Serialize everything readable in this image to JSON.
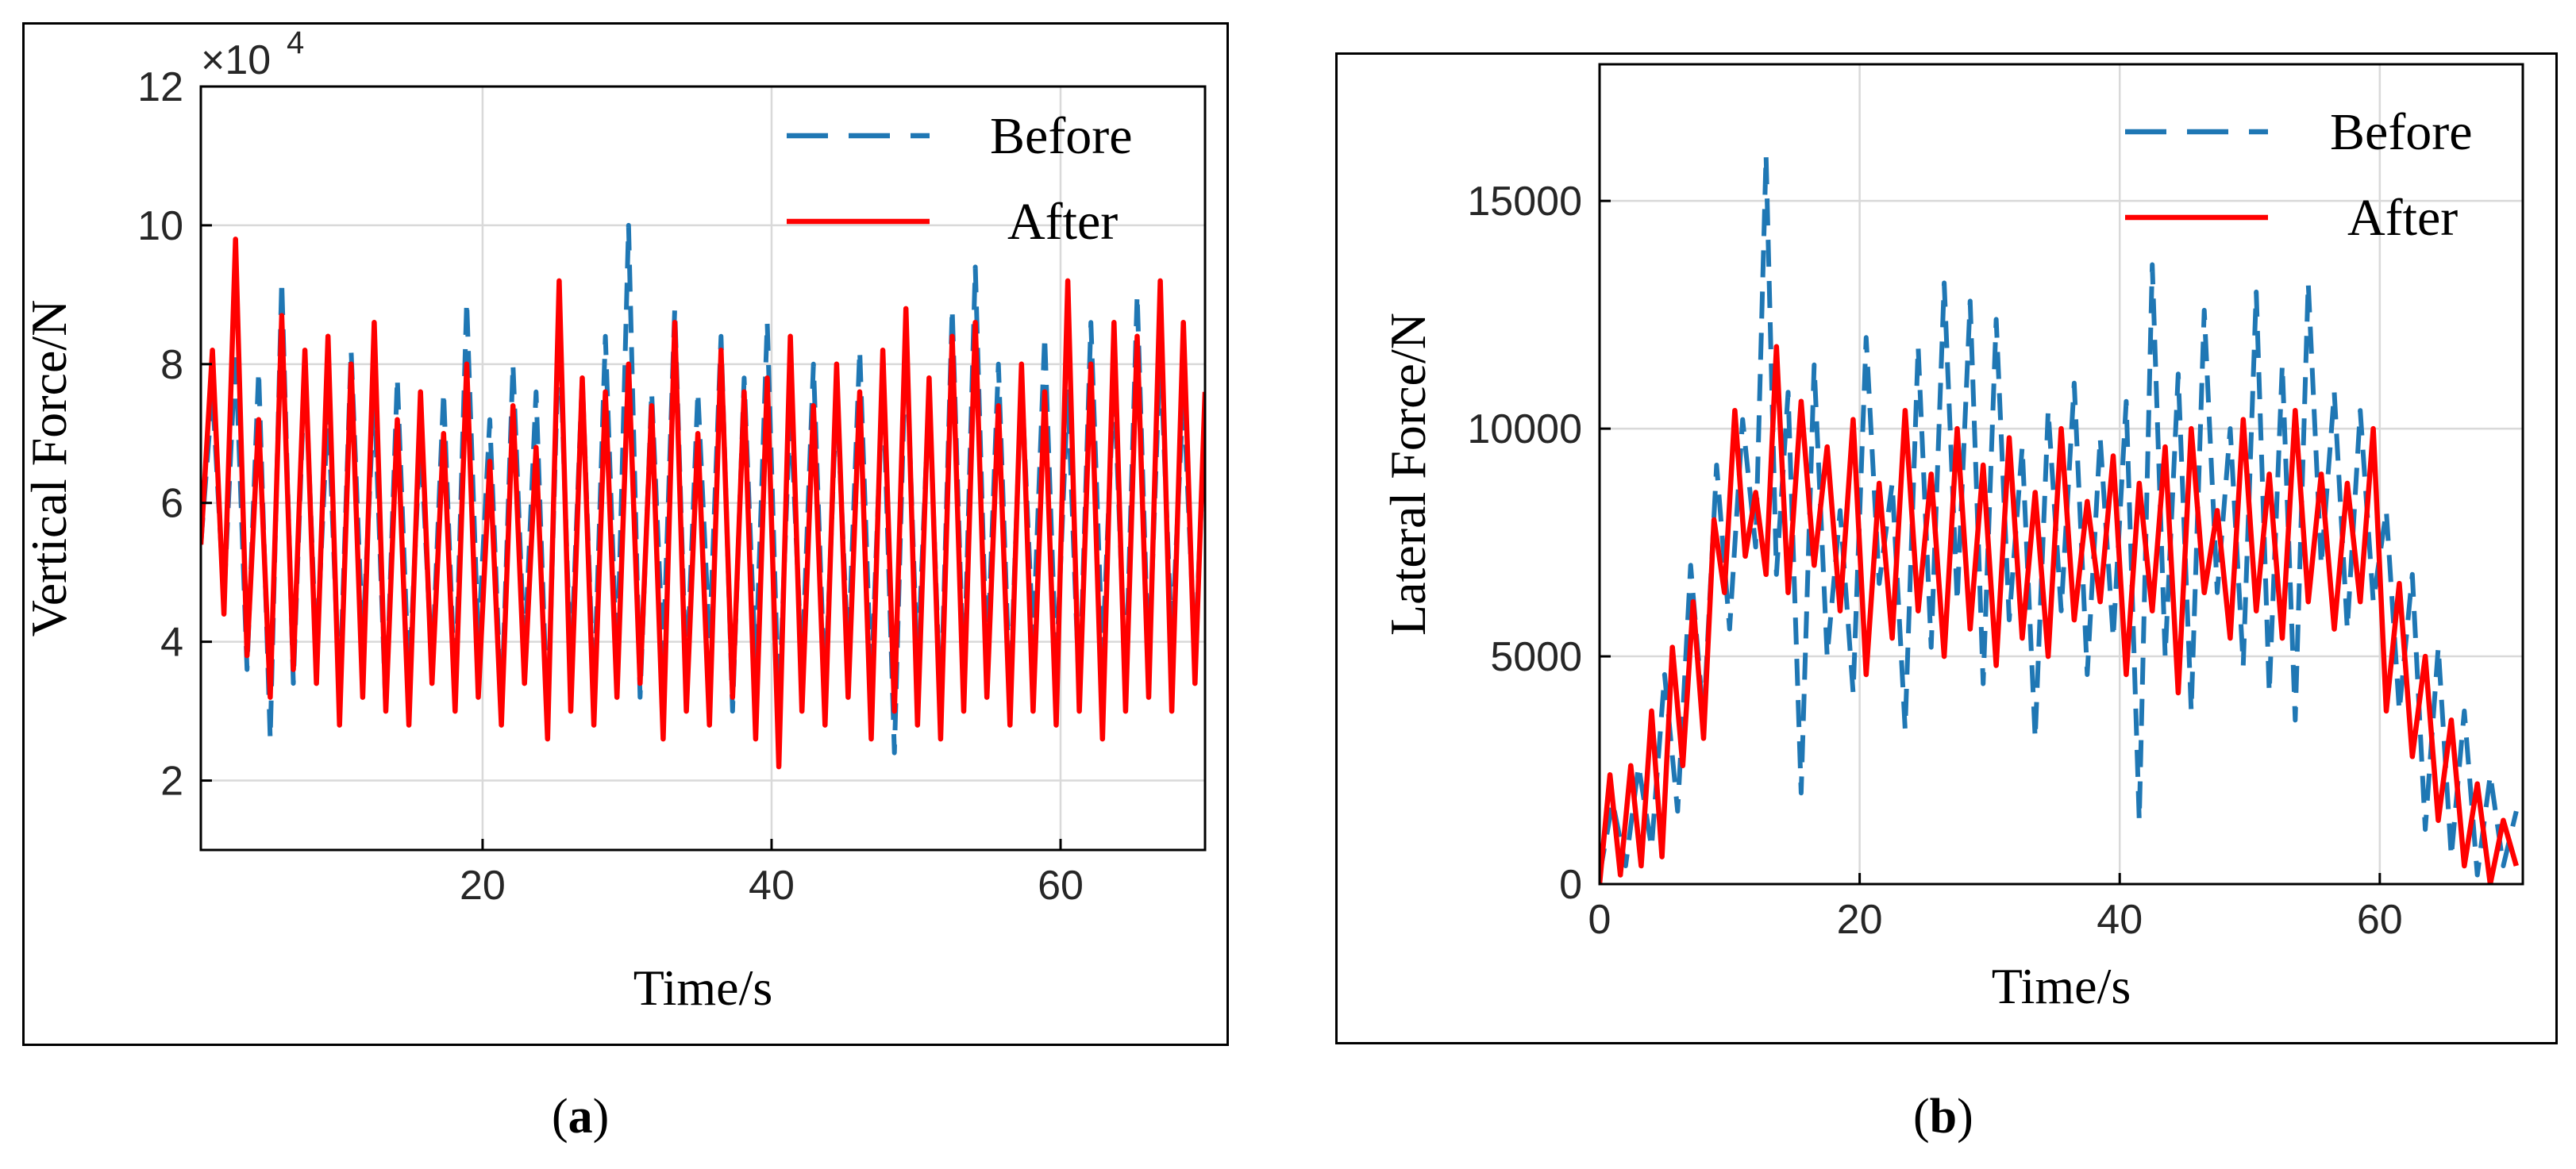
{
  "figure": {
    "captions": [
      "(a)",
      "(b)"
    ],
    "caption_parts": [
      {
        "open": "(",
        "letter": "a",
        "close": ")"
      },
      {
        "open": "(",
        "letter": "b",
        "close": ")"
      }
    ]
  },
  "colors": {
    "before": "#1f77b4",
    "after": "#ff0000",
    "grid": "#d9d9d9",
    "axis": "#000000"
  },
  "chart_data": [
    {
      "type": "line",
      "title": "",
      "xlabel": "Time/s",
      "ylabel": "Vertical Force/N",
      "xlim": [
        0.5,
        70
      ],
      "ylim": [
        1,
        12
      ],
      "xticks": [
        20,
        40,
        60
      ],
      "xtick_labels": [
        "20",
        "40",
        "60"
      ],
      "yticks": [
        2,
        4,
        6,
        8,
        10,
        12
      ],
      "ytick_labels": [
        "2",
        "4",
        "6",
        "8",
        "10",
        "12"
      ],
      "y_multiplier": "×10",
      "y_multiplier_exp": "4",
      "grid": true,
      "legend_position": "top-right",
      "series": [
        {
          "name": "Before",
          "style": "dashed",
          "color": "#1f77b4",
          "x": [
            0.5,
            1.3,
            2.1,
            2.9,
            3.7,
            4.5,
            5.3,
            6.1,
            6.9,
            7.7,
            8.5,
            9.3,
            10.1,
            10.9,
            11.7,
            12.5,
            13.3,
            14.1,
            14.9,
            15.7,
            16.5,
            17.3,
            18.1,
            18.9,
            19.7,
            20.5,
            21.3,
            22.1,
            22.9,
            23.7,
            24.5,
            25.3,
            26.1,
            26.9,
            27.7,
            28.5,
            29.3,
            30.1,
            30.9,
            31.7,
            32.5,
            33.3,
            34.1,
            34.9,
            35.7,
            36.5,
            37.3,
            38.1,
            38.9,
            39.7,
            40.5,
            41.3,
            42.1,
            42.9,
            43.7,
            44.5,
            45.3,
            46.1,
            46.9,
            47.7,
            48.5,
            49.3,
            50.1,
            50.9,
            51.7,
            52.5,
            53.3,
            54.1,
            54.9,
            55.7,
            56.5,
            57.3,
            58.1,
            58.9,
            59.7,
            60.5,
            61.3,
            62.1,
            62.9,
            63.7,
            64.5,
            65.3,
            66.1,
            66.9,
            67.7,
            68.5,
            69.3,
            70.0
          ],
          "y": [
            5.4,
            7.6,
            4.6,
            8.2,
            3.6,
            7.9,
            2.6,
            9.2,
            3.4,
            8.0,
            3.8,
            7.4,
            3.2,
            8.2,
            4.0,
            7.6,
            3.0,
            7.8,
            3.4,
            7.0,
            3.6,
            7.6,
            3.2,
            8.9,
            4.0,
            7.2,
            3.0,
            8.0,
            3.8,
            7.6,
            2.8,
            8.6,
            3.6,
            7.8,
            3.2,
            8.4,
            3.6,
            10.0,
            3.2,
            7.6,
            3.8,
            8.8,
            3.4,
            7.6,
            4.0,
            8.4,
            3.0,
            7.8,
            3.6,
            8.6,
            3.0,
            7.4,
            3.6,
            8.0,
            3.2,
            7.6,
            3.8,
            8.2,
            3.4,
            7.8,
            2.4,
            8.4,
            3.6,
            7.6,
            3.0,
            8.8,
            3.4,
            9.4,
            3.6,
            8.0,
            3.2,
            7.8,
            4.0,
            8.4,
            3.6,
            7.6,
            3.2,
            8.6,
            3.8,
            7.8,
            3.4,
            9.0,
            3.6,
            8.2,
            4.0,
            7.6,
            3.8,
            7.2
          ]
        },
        {
          "name": "After",
          "style": "solid",
          "color": "#ff0000",
          "x": [
            0.5,
            1.3,
            2.1,
            2.9,
            3.7,
            4.5,
            5.3,
            6.1,
            6.9,
            7.7,
            8.5,
            9.3,
            10.1,
            10.9,
            11.7,
            12.5,
            13.3,
            14.1,
            14.9,
            15.7,
            16.5,
            17.3,
            18.1,
            18.9,
            19.7,
            20.5,
            21.3,
            22.1,
            22.9,
            23.7,
            24.5,
            25.3,
            26.1,
            26.9,
            27.7,
            28.5,
            29.3,
            30.1,
            30.9,
            31.7,
            32.5,
            33.3,
            34.1,
            34.9,
            35.7,
            36.5,
            37.3,
            38.1,
            38.9,
            39.7,
            40.5,
            41.3,
            42.1,
            42.9,
            43.7,
            44.5,
            45.3,
            46.1,
            46.9,
            47.7,
            48.5,
            49.3,
            50.1,
            50.9,
            51.7,
            52.5,
            53.3,
            54.1,
            54.9,
            55.7,
            56.5,
            57.3,
            58.1,
            58.9,
            59.7,
            60.5,
            61.3,
            62.1,
            62.9,
            63.7,
            64.5,
            65.3,
            66.1,
            66.9,
            67.7,
            68.5,
            69.3,
            70.0
          ],
          "y": [
            5.4,
            8.2,
            4.4,
            9.8,
            3.8,
            7.2,
            3.2,
            8.7,
            3.6,
            8.2,
            3.4,
            8.4,
            2.8,
            8.0,
            3.2,
            8.6,
            3.0,
            7.2,
            2.8,
            7.6,
            3.4,
            7.0,
            3.0,
            8.0,
            3.2,
            6.6,
            2.8,
            7.4,
            3.4,
            6.8,
            2.6,
            9.2,
            3.0,
            7.8,
            2.8,
            7.6,
            3.2,
            8.0,
            3.4,
            7.4,
            2.6,
            8.6,
            3.0,
            7.0,
            2.8,
            8.2,
            3.2,
            7.6,
            2.6,
            7.8,
            2.2,
            8.4,
            3.0,
            7.4,
            2.8,
            8.0,
            3.2,
            7.6,
            2.6,
            8.2,
            3.0,
            8.8,
            2.8,
            7.8,
            2.6,
            8.4,
            3.0,
            8.6,
            3.2,
            7.4,
            2.8,
            8.0,
            3.0,
            7.6,
            2.8,
            9.2,
            3.0,
            8.0,
            2.6,
            8.6,
            3.0,
            8.4,
            3.2,
            9.2,
            3.0,
            8.6,
            3.4,
            7.6
          ]
        }
      ]
    },
    {
      "type": "line",
      "title": "",
      "xlabel": "Time/s",
      "ylabel": "Lateral Force/N",
      "xlim": [
        0,
        71
      ],
      "ylim": [
        0,
        18000
      ],
      "xticks": [
        0,
        20,
        40,
        60
      ],
      "xtick_labels": [
        "0",
        "20",
        "40",
        "60"
      ],
      "yticks": [
        0,
        5000,
        10000,
        15000
      ],
      "ytick_labels": [
        "0",
        "5000",
        "10000",
        "15000"
      ],
      "grid": true,
      "legend_position": "top-right",
      "series": [
        {
          "name": "Before",
          "style": "dashed",
          "color": "#1f77b4",
          "x": [
            0,
            1,
            2,
            3,
            4,
            5,
            6,
            7,
            8,
            9,
            10,
            11,
            12,
            12.8,
            13.6,
            14.5,
            15.5,
            16.5,
            17.5,
            18.5,
            19.5,
            20.5,
            21.5,
            22.5,
            23.5,
            24.5,
            25.5,
            26.5,
            27.5,
            28.5,
            29.5,
            30.5,
            31.5,
            32.5,
            33.5,
            34.5,
            35.5,
            36.5,
            37.5,
            38.5,
            39.5,
            40.5,
            41.5,
            42.5,
            43.5,
            44.5,
            45.5,
            46.5,
            47.5,
            48.5,
            49.5,
            50.5,
            51.5,
            52.5,
            53.5,
            54.5,
            55.5,
            56.5,
            57.5,
            58.5,
            59.5,
            60.5,
            61.5,
            62.5,
            63.5,
            64.5,
            65.5,
            66.5,
            67.5,
            68.5,
            69.5,
            70.5
          ],
          "y": [
            200,
            1800,
            400,
            2600,
            800,
            4600,
            1600,
            7000,
            3600,
            9200,
            5600,
            10200,
            7400,
            16000,
            6800,
            10800,
            2000,
            11400,
            5000,
            8200,
            4200,
            12000,
            6600,
            8800,
            3400,
            11800,
            5200,
            13200,
            6200,
            12800,
            4400,
            12400,
            5800,
            9600,
            3200,
            10400,
            6000,
            11000,
            4600,
            9800,
            5400,
            10600,
            1400,
            13600,
            5000,
            11200,
            3800,
            12600,
            6400,
            10000,
            4800,
            13000,
            4200,
            11400,
            3600,
            13200,
            7000,
            10800,
            5600,
            10400,
            6200,
            8200,
            3800,
            6800,
            1200,
            5200,
            600,
            3800,
            200,
            2400,
            400,
            1600
          ]
        },
        {
          "name": "After",
          "style": "solid",
          "color": "#ff0000",
          "x": [
            0,
            0.8,
            1.6,
            2.4,
            3.2,
            4,
            4.8,
            5.6,
            6.4,
            7.2,
            8,
            8.8,
            9.6,
            10.4,
            11.2,
            12,
            12.8,
            13.6,
            14.5,
            15.5,
            16.5,
            17.5,
            18.5,
            19.5,
            20.5,
            21.5,
            22.5,
            23.5,
            24.5,
            25.5,
            26.5,
            27.5,
            28.5,
            29.5,
            30.5,
            31.5,
            32.5,
            33.5,
            34.5,
            35.5,
            36.5,
            37.5,
            38.5,
            39.5,
            40.5,
            41.5,
            42.5,
            43.5,
            44.5,
            45.5,
            46.5,
            47.5,
            48.5,
            49.5,
            50.5,
            51.5,
            52.5,
            53.5,
            54.5,
            55.5,
            56.5,
            57.5,
            58.5,
            59.5,
            60.5,
            61.5,
            62.5,
            63.5,
            64.5,
            65.5,
            66.5,
            67.5,
            68.5,
            69.5,
            70.5
          ],
          "y": [
            0,
            2400,
            200,
            2600,
            400,
            3800,
            600,
            5200,
            2600,
            6200,
            3200,
            8000,
            6400,
            10400,
            7200,
            8600,
            6800,
            11800,
            6400,
            10600,
            7000,
            9600,
            6000,
            10200,
            4600,
            8800,
            5400,
            10400,
            6000,
            9000,
            5000,
            10000,
            5600,
            9200,
            4800,
            9800,
            5400,
            8600,
            5000,
            10000,
            5800,
            8400,
            6200,
            9400,
            4600,
            8800,
            6000,
            9600,
            4200,
            10000,
            6400,
            8200,
            5400,
            10200,
            6000,
            9000,
            5400,
            10400,
            6200,
            9000,
            5600,
            8800,
            6200,
            10000,
            3800,
            6600,
            2800,
            5000,
            1400,
            3600,
            400,
            2200,
            0,
            1400,
            400
          ]
        }
      ]
    }
  ]
}
